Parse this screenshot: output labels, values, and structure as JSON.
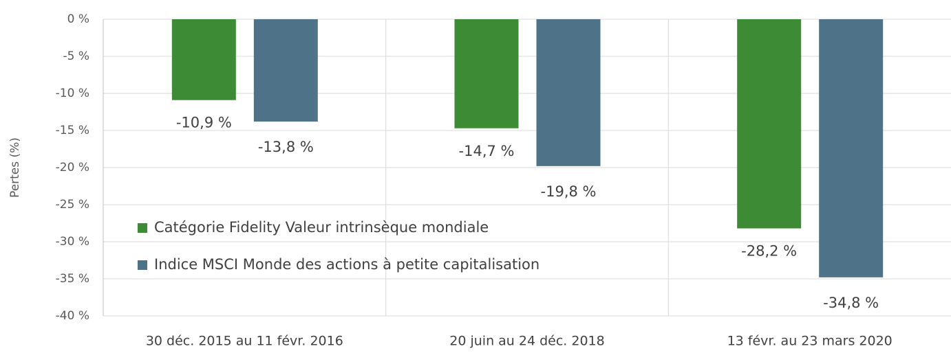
{
  "chart_data": {
    "type": "bar",
    "y_label": "Pertes (%)",
    "categories": [
      "30 déc. 2015 au 11 févr. 2016",
      "20 juin au 24 déc. 2018",
      "13 févr. au 23 mars 2020"
    ],
    "series": [
      {
        "name": "Catégorie Fidelity Valeur intrinsèque mondiale",
        "color": "#3d8c35",
        "values": [
          -10.9,
          -14.7,
          -28.2
        ],
        "value_labels": [
          "-10,9 %",
          "-14,7 %",
          "-28,2 %"
        ]
      },
      {
        "name": "Indice MSCI Monde des actions à petite capitalisation",
        "color": "#4e7389",
        "values": [
          -13.8,
          -19.8,
          -34.8
        ],
        "value_labels": [
          "-13,8 %",
          "-19,8 %",
          "-34,8 %"
        ]
      }
    ],
    "ylim": [
      -40,
      0
    ],
    "yticks": [
      {
        "value": 0,
        "label": "0 %"
      },
      {
        "value": -5,
        "label": "-5 %"
      },
      {
        "value": -10,
        "label": "-10 %"
      },
      {
        "value": -15,
        "label": "-15 %"
      },
      {
        "value": -20,
        "label": "-20 %"
      },
      {
        "value": -25,
        "label": "-25 %"
      },
      {
        "value": -30,
        "label": "-30 %"
      },
      {
        "value": -35,
        "label": "-35 %"
      },
      {
        "value": -40,
        "label": "-40 %"
      }
    ],
    "grid": true
  }
}
